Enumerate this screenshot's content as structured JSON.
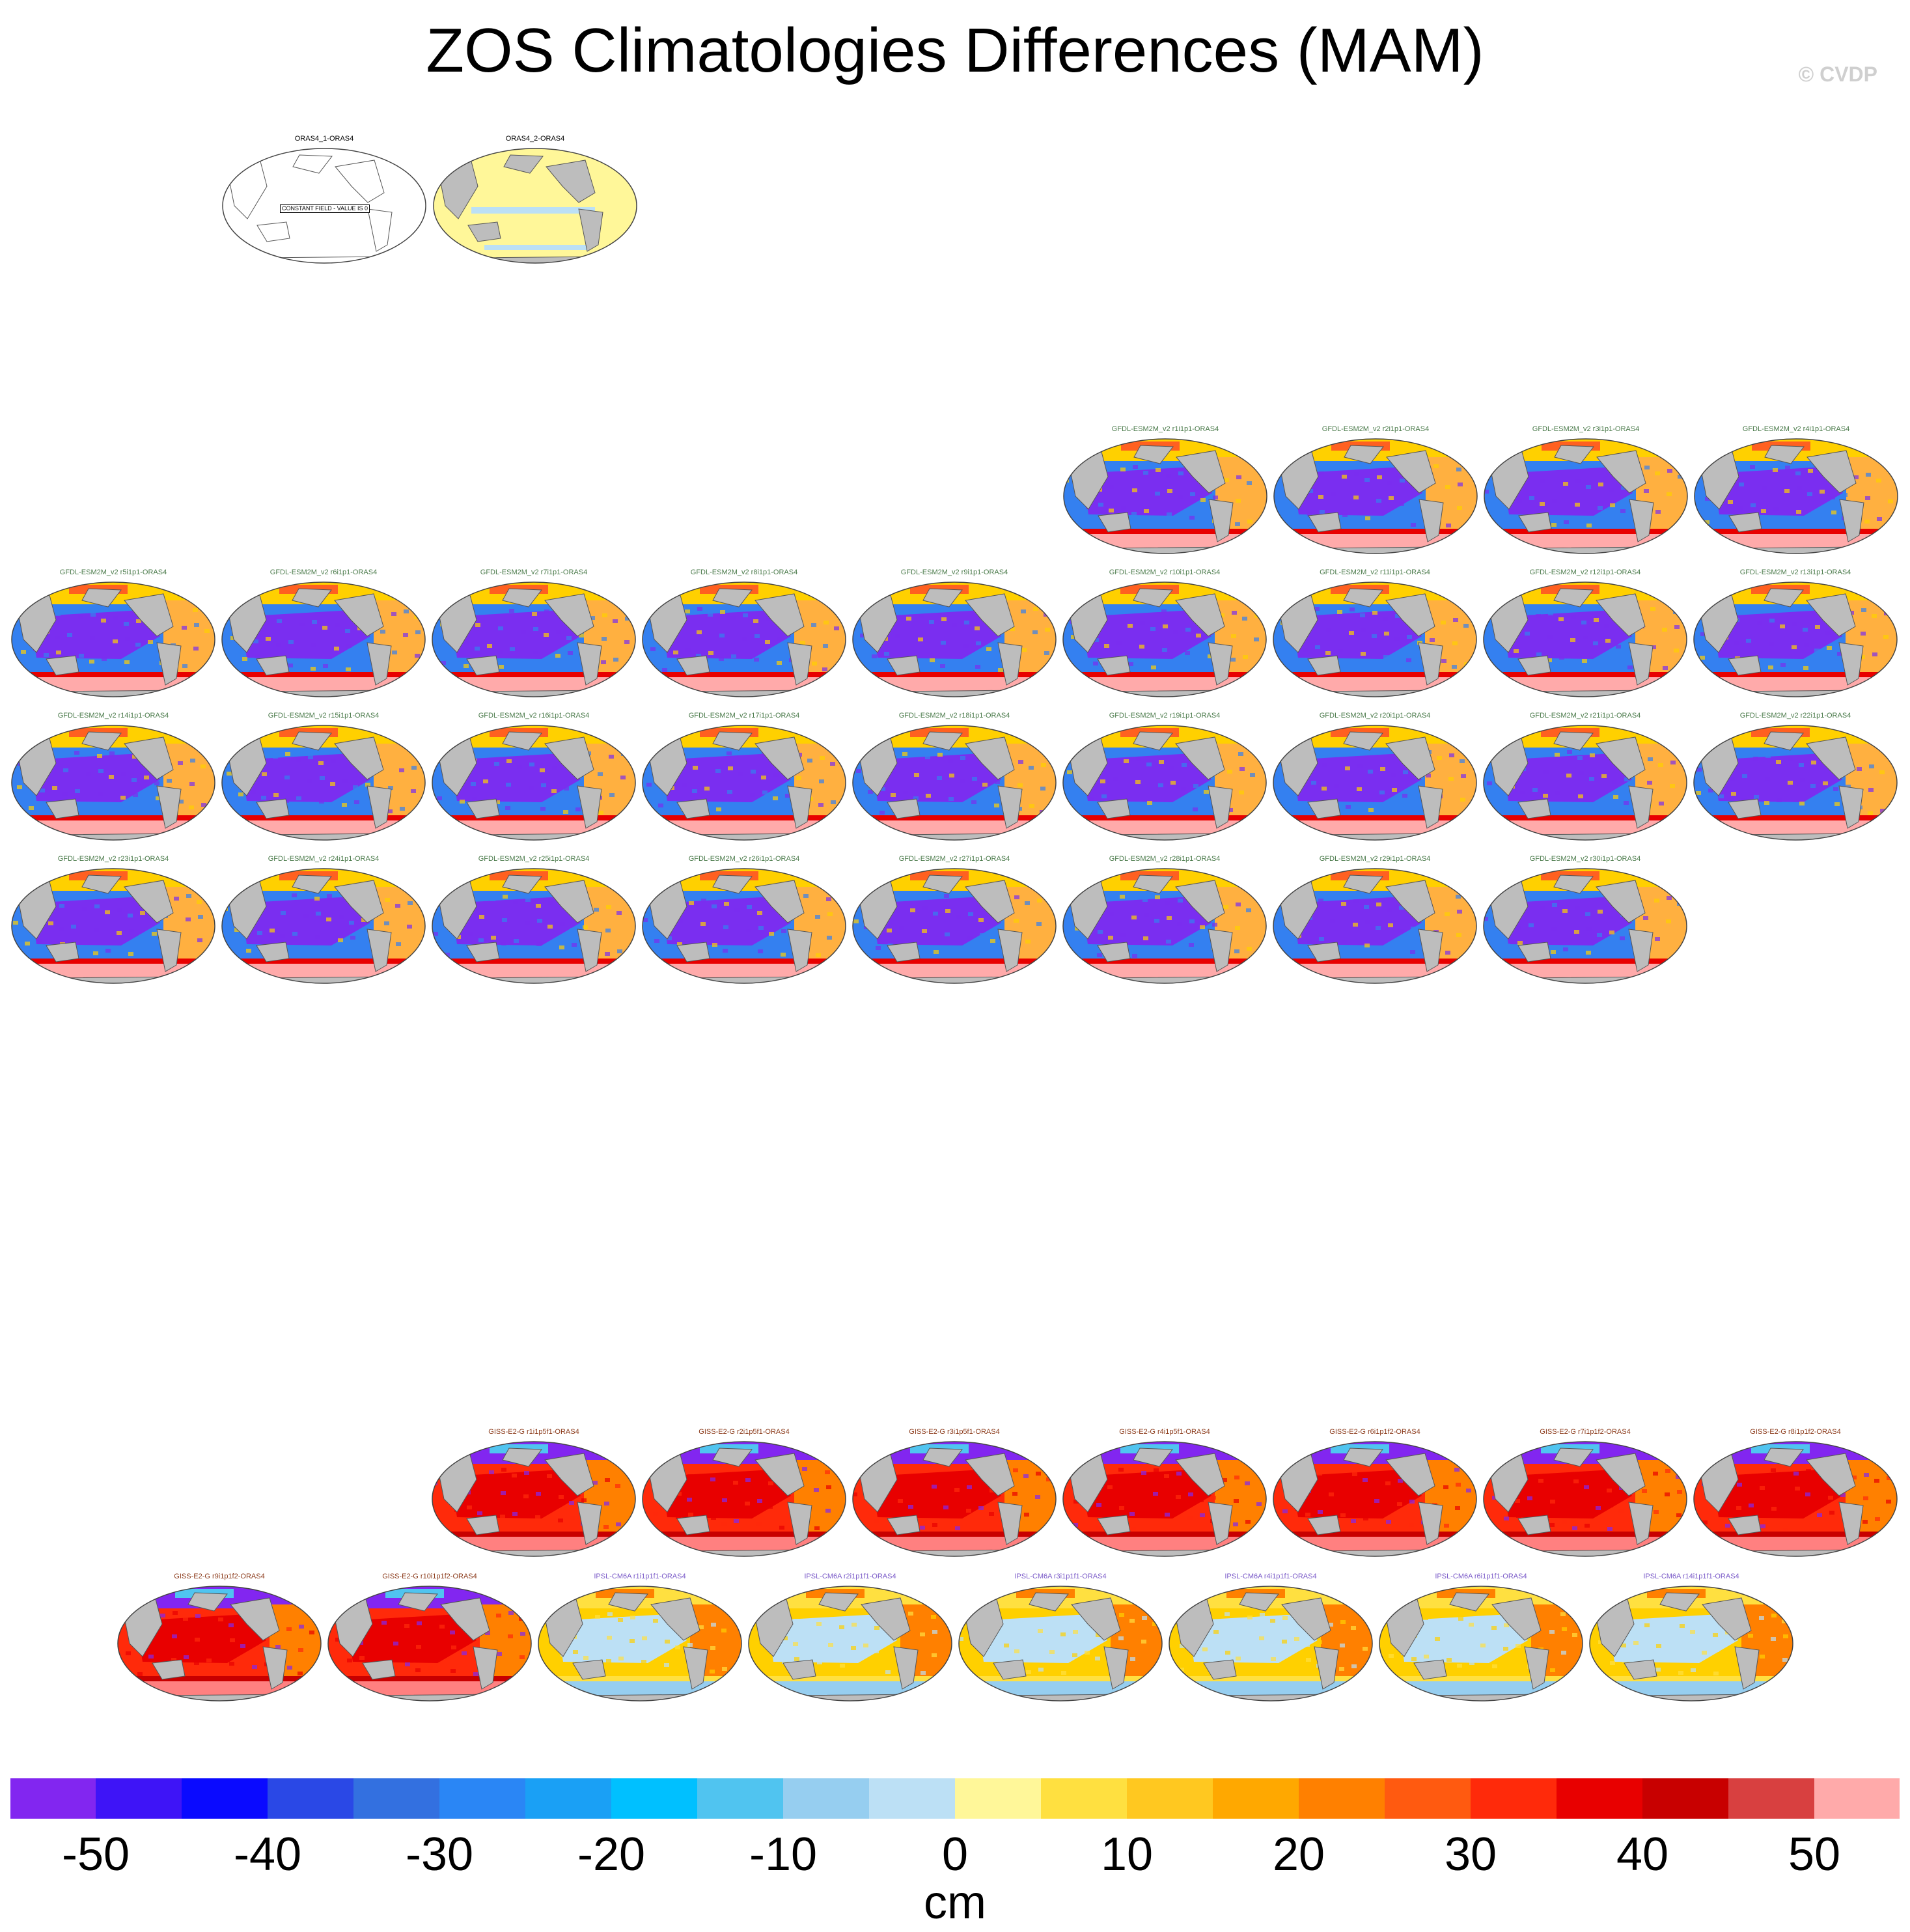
{
  "title": "ZOS Climatologies Differences (MAM)",
  "credit": "© CVDP",
  "colors": {
    "gfdl_title": "#4a7a4a",
    "giss_title": "#8b3a1a",
    "ipsl_title": "#7a5ac8",
    "obs_title": "#000000",
    "land": "#bdbdbd",
    "ocean_outline": "#444444"
  },
  "constant_field_note": "CONSTANT FIELD - VALUE IS 0",
  "panels": {
    "obs": [
      {
        "title": "ORAS4_1-ORAS4",
        "scheme": "white"
      },
      {
        "title": "ORAS4_2-ORAS4",
        "scheme": "yellow"
      }
    ],
    "gfdl": [
      "GFDL-ESM2M_v2 r1i1p1-ORAS4",
      "GFDL-ESM2M_v2 r2i1p1-ORAS4",
      "GFDL-ESM2M_v2 r3i1p1-ORAS4",
      "GFDL-ESM2M_v2 r4i1p1-ORAS4",
      "GFDL-ESM2M_v2 r5i1p1-ORAS4",
      "GFDL-ESM2M_v2 r6i1p1-ORAS4",
      "GFDL-ESM2M_v2 r7i1p1-ORAS4",
      "GFDL-ESM2M_v2 r8i1p1-ORAS4",
      "GFDL-ESM2M_v2 r9i1p1-ORAS4",
      "GFDL-ESM2M_v2 r10i1p1-ORAS4",
      "GFDL-ESM2M_v2 r11i1p1-ORAS4",
      "GFDL-ESM2M_v2 r12i1p1-ORAS4",
      "GFDL-ESM2M_v2 r13i1p1-ORAS4",
      "GFDL-ESM2M_v2 r14i1p1-ORAS4",
      "GFDL-ESM2M_v2 r15i1p1-ORAS4",
      "GFDL-ESM2M_v2 r16i1p1-ORAS4",
      "GFDL-ESM2M_v2 r17i1p1-ORAS4",
      "GFDL-ESM2M_v2 r18i1p1-ORAS4",
      "GFDL-ESM2M_v2 r19i1p1-ORAS4",
      "GFDL-ESM2M_v2 r20i1p1-ORAS4",
      "GFDL-ESM2M_v2 r21i1p1-ORAS4",
      "GFDL-ESM2M_v2 r22i1p1-ORAS4",
      "GFDL-ESM2M_v2 r23i1p1-ORAS4",
      "GFDL-ESM2M_v2 r24i1p1-ORAS4",
      "GFDL-ESM2M_v2 r25i1p1-ORAS4",
      "GFDL-ESM2M_v2 r26i1p1-ORAS4",
      "GFDL-ESM2M_v2 r27i1p1-ORAS4",
      "GFDL-ESM2M_v2 r28i1p1-ORAS4",
      "GFDL-ESM2M_v2 r29i1p1-ORAS4",
      "GFDL-ESM2M_v2 r30i1p1-ORAS4"
    ],
    "giss": [
      "GISS-E2-G r1i1p5f1-ORAS4",
      "GISS-E2-G r2i1p5f1-ORAS4",
      "GISS-E2-G r3i1p5f1-ORAS4",
      "GISS-E2-G r4i1p5f1-ORAS4",
      "GISS-E2-G r6i1p1f2-ORAS4",
      "GISS-E2-G r7i1p1f2-ORAS4",
      "GISS-E2-G r8i1p1f2-ORAS4",
      "GISS-E2-G r9i1p1f2-ORAS4",
      "GISS-E2-G r10i1p1f2-ORAS4"
    ],
    "ipsl": [
      "IPSL-CM6A r1i1p1f1-ORAS4",
      "IPSL-CM6A r2i1p1f1-ORAS4",
      "IPSL-CM6A r3i1p1f1-ORAS4",
      "IPSL-CM6A r4i1p1f1-ORAS4",
      "IPSL-CM6A r6i1p1f1-ORAS4",
      "IPSL-CM6A r14i1p1f1-ORAS4"
    ]
  },
  "colorbar": {
    "units": "cm",
    "colors": [
      "#8226f0",
      "#3e14f7",
      "#0a0aff",
      "#2a48e6",
      "#3370e0",
      "#2a86f5",
      "#1aa0f5",
      "#00c0ff",
      "#50c4f0",
      "#96cef0",
      "#bce0f5",
      "#fff799",
      "#ffe040",
      "#ffc820",
      "#ffa800",
      "#ff8000",
      "#ff5a10",
      "#ff2a0a",
      "#e80000",
      "#c80000",
      "#d84040",
      "#ffaaaa"
    ],
    "tick_labels": [
      "-50",
      "-40",
      "-30",
      "-20",
      "-10",
      "0",
      "10",
      "20",
      "30",
      "40",
      "50"
    ]
  }
}
